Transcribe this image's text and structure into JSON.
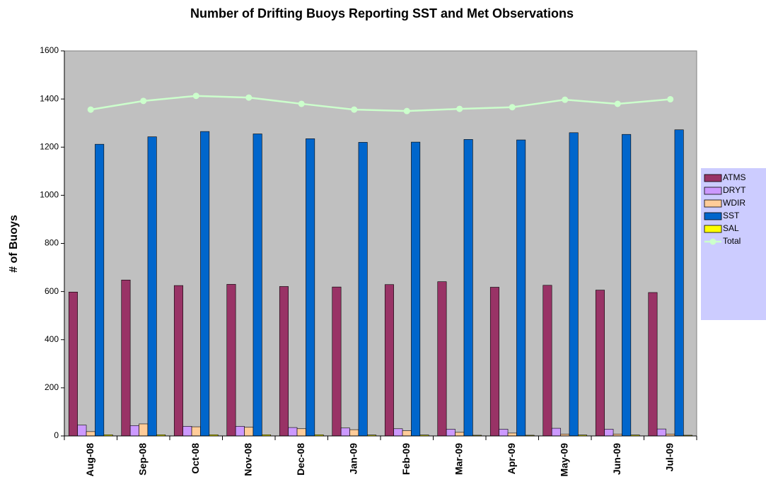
{
  "chart_data": {
    "type": "bar",
    "title": "Number of Drifting Buoys Reporting SST and Met Observations",
    "y_label": "# of Buoys",
    "categories": [
      "Aug-08",
      "Sep-08",
      "Oct-08",
      "Nov-08",
      "Dec-08",
      "Jan-09",
      "Feb-09",
      "Mar-09",
      "Apr-09",
      "May-09",
      "Jun-09",
      "Jul-09"
    ],
    "series": [
      {
        "name": "ATMS",
        "color": "#993366",
        "type": "bar",
        "values": [
          598,
          648,
          625,
          630,
          621,
          619,
          629,
          641,
          618,
          626,
          606,
          596
        ]
      },
      {
        "name": "DRYT",
        "color": "#cc99ff",
        "type": "bar",
        "values": [
          45,
          43,
          40,
          40,
          35,
          33,
          30,
          28,
          28,
          32,
          28,
          29
        ]
      },
      {
        "name": "WDIR",
        "color": "#ffcc99",
        "type": "bar",
        "values": [
          18,
          50,
          38,
          36,
          30,
          26,
          22,
          15,
          12,
          8,
          8,
          8
        ]
      },
      {
        "name": "SST",
        "color": "#0066cc",
        "type": "bar",
        "values": [
          1212,
          1243,
          1265,
          1255,
          1235,
          1220,
          1221,
          1232,
          1230,
          1260,
          1253,
          1272
        ]
      },
      {
        "name": "SAL",
        "color": "#ffff00",
        "type": "bar",
        "values": [
          5,
          5,
          5,
          5,
          5,
          4,
          4,
          3,
          3,
          4,
          4,
          3
        ]
      },
      {
        "name": "Total",
        "color": "#ccffcc",
        "type": "line",
        "values": [
          1356,
          1392,
          1413,
          1406,
          1380,
          1356,
          1350,
          1359,
          1366,
          1397,
          1380,
          1399
        ]
      }
    ],
    "ylim": [
      0,
      1600
    ],
    "yticks": [
      0,
      200,
      400,
      600,
      800,
      1000,
      1200,
      1400,
      1600
    ],
    "plot_background": "#c0c0c0",
    "legend": "right",
    "grid": false
  }
}
